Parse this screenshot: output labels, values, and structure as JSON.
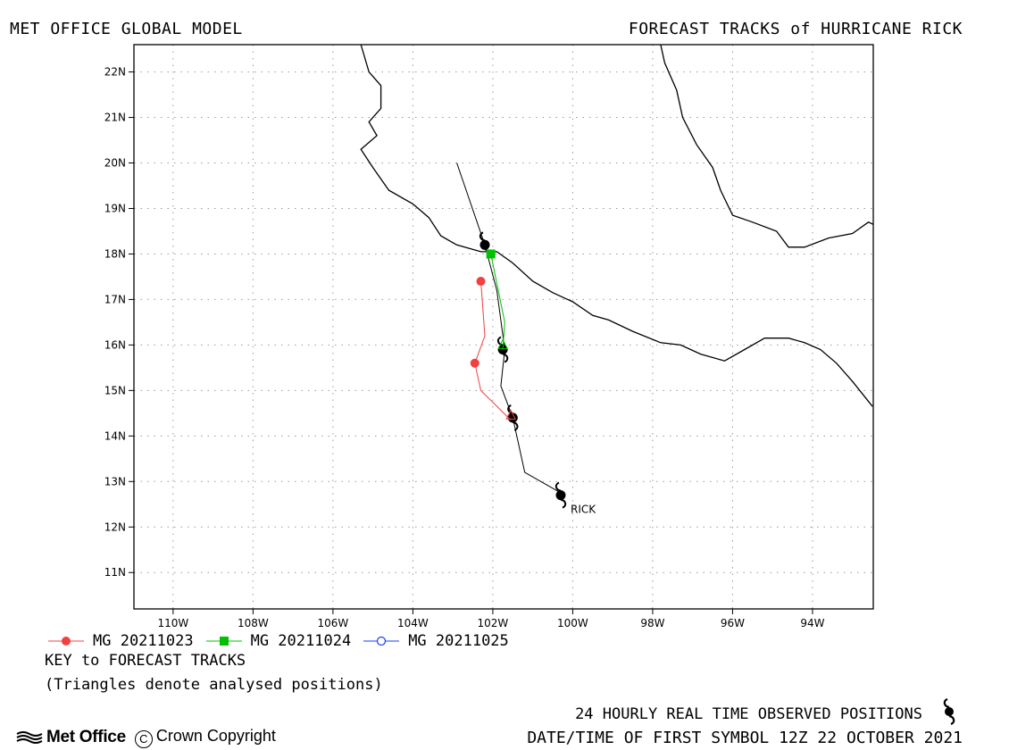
{
  "header": {
    "left": "MET OFFICE GLOBAL MODEL",
    "right": "FORECAST TRACKS of HURRICANE RICK"
  },
  "map": {
    "lat_range": [
      10.2,
      22.6
    ],
    "lon_range": [
      -110.98,
      -92.48
    ],
    "lat_ticks": [
      {
        "value": 22,
        "label": "22N"
      },
      {
        "value": 21,
        "label": "21N"
      },
      {
        "value": 20,
        "label": "20N"
      },
      {
        "value": 19,
        "label": "19N"
      },
      {
        "value": 18,
        "label": "18N"
      },
      {
        "value": 17,
        "label": "17N"
      },
      {
        "value": 16,
        "label": "16N"
      },
      {
        "value": 15,
        "label": "15N"
      },
      {
        "value": 14,
        "label": "14N"
      },
      {
        "value": 13,
        "label": "13N"
      },
      {
        "value": 12,
        "label": "12N"
      },
      {
        "value": 11,
        "label": "11N"
      }
    ],
    "lon_ticks": [
      {
        "value": -110,
        "label": "110W"
      },
      {
        "value": -108,
        "label": "108W"
      },
      {
        "value": -106,
        "label": "106W"
      },
      {
        "value": -104,
        "label": "104W"
      },
      {
        "value": -102,
        "label": "102W"
      },
      {
        "value": -100,
        "label": "100W"
      },
      {
        "value": -98,
        "label": "98W"
      },
      {
        "value": -96,
        "label": "96W"
      },
      {
        "value": -94,
        "label": "94W"
      }
    ],
    "grid": "dotted",
    "colors": {
      "land": "#000000",
      "observed": "#000000",
      "grid": "#9a9a9a"
    },
    "coastline_pacific": [
      [
        -105.3,
        22.6
      ],
      [
        -105.1,
        22.0
      ],
      [
        -104.8,
        21.7
      ],
      [
        -104.8,
        21.2
      ],
      [
        -105.1,
        20.9
      ],
      [
        -104.9,
        20.6
      ],
      [
        -105.3,
        20.3
      ],
      [
        -105.0,
        19.9
      ],
      [
        -104.6,
        19.4
      ],
      [
        -104.0,
        19.1
      ],
      [
        -103.6,
        18.8
      ],
      [
        -103.3,
        18.4
      ],
      [
        -102.9,
        18.2
      ],
      [
        -102.3,
        18.05
      ],
      [
        -101.9,
        18.05
      ],
      [
        -101.5,
        17.8
      ],
      [
        -101.0,
        17.4
      ],
      [
        -100.5,
        17.15
      ],
      [
        -100.0,
        16.95
      ],
      [
        -99.5,
        16.65
      ],
      [
        -99.1,
        16.55
      ],
      [
        -98.5,
        16.3
      ],
      [
        -97.8,
        16.05
      ],
      [
        -97.3,
        16.0
      ],
      [
        -96.8,
        15.8
      ],
      [
        -96.2,
        15.65
      ],
      [
        -95.7,
        15.9
      ],
      [
        -95.2,
        16.15
      ],
      [
        -94.6,
        16.15
      ],
      [
        -94.2,
        16.05
      ],
      [
        -93.8,
        15.9
      ],
      [
        -93.4,
        15.6
      ],
      [
        -93.0,
        15.2
      ],
      [
        -92.5,
        14.65
      ]
    ],
    "coastline_gulf": [
      [
        -97.8,
        22.6
      ],
      [
        -97.7,
        22.2
      ],
      [
        -97.4,
        21.6
      ],
      [
        -97.25,
        21.0
      ],
      [
        -96.9,
        20.4
      ],
      [
        -96.5,
        19.9
      ],
      [
        -96.3,
        19.4
      ],
      [
        -96.0,
        18.85
      ],
      [
        -95.5,
        18.7
      ],
      [
        -94.9,
        18.5
      ],
      [
        -94.6,
        18.15
      ],
      [
        -94.2,
        18.15
      ],
      [
        -93.6,
        18.35
      ],
      [
        -93.0,
        18.45
      ],
      [
        -92.6,
        18.7
      ],
      [
        -92.48,
        18.65
      ]
    ],
    "observed_track": {
      "name": "RICK",
      "points": [
        [
          -100.2,
          12.7
        ],
        [
          -101.2,
          13.2
        ],
        [
          -101.5,
          14.4
        ],
        [
          -101.8,
          15.1
        ],
        [
          -101.7,
          15.9
        ],
        [
          -101.9,
          17.2
        ],
        [
          -102.2,
          18.2
        ],
        [
          -102.9,
          20.0
        ]
      ],
      "symbols": [
        [
          -100.3,
          12.7
        ],
        [
          -101.5,
          14.4
        ],
        [
          -101.75,
          15.9
        ],
        [
          -102.2,
          18.2
        ]
      ]
    },
    "forecast_tracks": [
      {
        "name": "MG 20211023",
        "color": "#f04040",
        "marker": "circle",
        "points": [
          [
            -101.55,
            14.35
          ],
          [
            -102.3,
            15.0
          ],
          [
            -102.45,
            15.6
          ],
          [
            -102.2,
            16.2
          ],
          [
            -102.3,
            17.4
          ]
        ],
        "triangle": [
          -101.55,
          14.45
        ]
      },
      {
        "name": "MG 20211024",
        "color": "#00c000",
        "marker": "square",
        "points": [
          [
            -101.75,
            15.9
          ],
          [
            -101.7,
            16.5
          ],
          [
            -102.05,
            18.0
          ]
        ],
        "triangle": [
          -101.75,
          16.0
        ]
      },
      {
        "name": "MG 20211025",
        "color": "#1a3cf0",
        "marker": "open-circle",
        "points": [],
        "triangle": null
      }
    ]
  },
  "legend": {
    "items": [
      {
        "label": "MG 20211023",
        "color": "#f04040",
        "marker": "circle"
      },
      {
        "label": "MG 20211024",
        "color": "#00c000",
        "marker": "square"
      },
      {
        "label": "MG 20211025",
        "color": "#1a3cf0",
        "marker": "open-circle"
      }
    ],
    "key_title": "KEY to FORECAST TRACKS",
    "key_note": "(Triangles denote analysed positions)"
  },
  "footer": {
    "observed": "24 HOURLY REAL TIME OBSERVED POSITIONS",
    "datetime": "DATE/TIME OF FIRST SYMBOL 12Z 22 OCTOBER 2021",
    "brand": "Met Office",
    "copyright": "Crown Copyright",
    "copyright_symbol": "C",
    "brand_icon": "met-office-wave-logo",
    "observed_icon": "hurricane-symbol"
  }
}
